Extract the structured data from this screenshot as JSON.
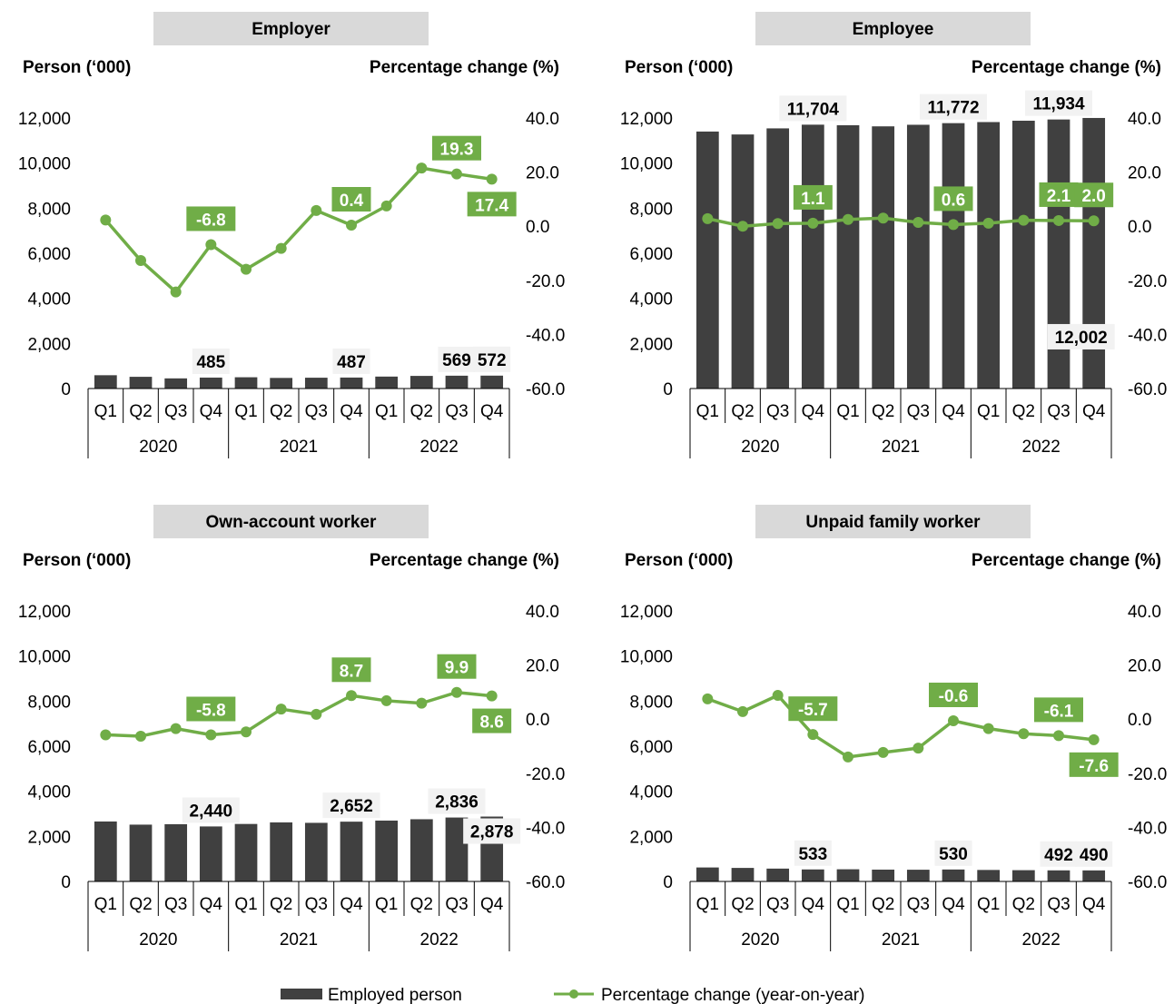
{
  "legend": {
    "bar_label": "Employed person",
    "line_label": "Percentage change (year-on-year)"
  },
  "colors": {
    "bar": "#404040",
    "line": "#70ad47",
    "title_bg": "#d9d9d9",
    "bar_label_bg": "#f2f2f2"
  },
  "chart_data": [
    {
      "type": "bar",
      "title": "Employer",
      "ylabel": "Person (‘000)",
      "y2label": "Percentage change (%)",
      "ylim": [
        0,
        12000
      ],
      "yticks": [
        "0",
        "2,000",
        "4,000",
        "6,000",
        "8,000",
        "10,000",
        "12,000"
      ],
      "y2lim": [
        -60,
        40
      ],
      "y2ticks": [
        "-60.0",
        "-40.0",
        "-20.0",
        "0.0",
        "20.0",
        "40.0"
      ],
      "years": [
        "2020",
        "2021",
        "2022"
      ],
      "quarters": [
        "Q1",
        "Q2",
        "Q3",
        "Q4",
        "Q1",
        "Q2",
        "Q3",
        "Q4",
        "Q1",
        "Q2",
        "Q3",
        "Q4"
      ],
      "series": [
        {
          "name": "Employed person",
          "type": "bar",
          "values": [
            590,
            520,
            450,
            485,
            500,
            470,
            480,
            487,
            530,
            560,
            569,
            572
          ]
        },
        {
          "name": "Percentage change (year-on-year)",
          "type": "line",
          "values": [
            2.3,
            -12.7,
            -24.3,
            -6.8,
            -15.9,
            -8.2,
            5.8,
            0.4,
            7.5,
            21.5,
            19.3,
            17.4
          ]
        }
      ],
      "bar_labels": [
        {
          "index": 3,
          "text": "485"
        },
        {
          "index": 7,
          "text": "487"
        },
        {
          "index": 10,
          "text": "569"
        },
        {
          "index": 11,
          "text": "572"
        }
      ],
      "line_labels": [
        {
          "index": 3,
          "text": "-6.8",
          "pos": "above"
        },
        {
          "index": 7,
          "text": "0.4",
          "pos": "above"
        },
        {
          "index": 10,
          "text": "19.3",
          "pos": "above"
        },
        {
          "index": 11,
          "text": "17.4",
          "pos": "below"
        }
      ]
    },
    {
      "type": "bar",
      "title": "Employee",
      "ylabel": "Person (‘000)",
      "y2label": "Percentage change (%)",
      "ylim": [
        0,
        12000
      ],
      "yticks": [
        "0",
        "2,000",
        "4,000",
        "6,000",
        "8,000",
        "10,000",
        "12,000"
      ],
      "y2lim": [
        -60,
        40
      ],
      "y2ticks": [
        "-60.0",
        "-40.0",
        "-20.0",
        "0.0",
        "20.0",
        "40.0"
      ],
      "years": [
        "2020",
        "2021",
        "2022"
      ],
      "quarters": [
        "Q1",
        "Q2",
        "Q3",
        "Q4",
        "Q1",
        "Q2",
        "Q3",
        "Q4",
        "Q1",
        "Q2",
        "Q3",
        "Q4"
      ],
      "series": [
        {
          "name": "Employed person",
          "type": "bar",
          "values": [
            11400,
            11270,
            11540,
            11704,
            11680,
            11630,
            11700,
            11772,
            11820,
            11880,
            11934,
            12002
          ]
        },
        {
          "name": "Percentage change (year-on-year)",
          "type": "line",
          "values": [
            2.8,
            0.0,
            1.0,
            1.1,
            2.5,
            3.0,
            1.4,
            0.6,
            1.1,
            2.2,
            2.1,
            2.0
          ]
        }
      ],
      "bar_labels": [
        {
          "index": 3,
          "text": "11,704"
        },
        {
          "index": 7,
          "text": "11,772"
        },
        {
          "index": 10,
          "text": "11,934"
        },
        {
          "index": 11,
          "text": "12,002"
        }
      ],
      "line_labels": [
        {
          "index": 3,
          "text": "1.1",
          "pos": "above"
        },
        {
          "index": 7,
          "text": "0.6",
          "pos": "above"
        },
        {
          "index": 10,
          "text": "2.1",
          "pos": "above"
        },
        {
          "index": 11,
          "text": "2.0",
          "pos": "above"
        }
      ]
    },
    {
      "type": "bar",
      "title": "Own-account worker",
      "ylabel": "Person (‘000)",
      "y2label": "Percentage change (%)",
      "ylim": [
        0,
        12000
      ],
      "yticks": [
        "0",
        "2,000",
        "4,000",
        "6,000",
        "8,000",
        "10,000",
        "12,000"
      ],
      "y2lim": [
        -60,
        40
      ],
      "y2ticks": [
        "-60.0",
        "-40.0",
        "-20.0",
        "0.0",
        "20.0",
        "40.0"
      ],
      "years": [
        "2020",
        "2021",
        "2022"
      ],
      "quarters": [
        "Q1",
        "Q2",
        "Q3",
        "Q4",
        "Q1",
        "Q2",
        "Q3",
        "Q4",
        "Q1",
        "Q2",
        "Q3",
        "Q4"
      ],
      "series": [
        {
          "name": "Employed person",
          "type": "bar",
          "values": [
            2660,
            2520,
            2540,
            2440,
            2550,
            2620,
            2600,
            2652,
            2700,
            2760,
            2836,
            2878
          ]
        },
        {
          "name": "Percentage change (year-on-year)",
          "type": "line",
          "values": [
            -5.8,
            -6.3,
            -3.5,
            -5.8,
            -4.7,
            3.7,
            1.8,
            8.7,
            6.8,
            5.9,
            9.9,
            8.6
          ]
        }
      ],
      "bar_labels": [
        {
          "index": 3,
          "text": "2,440"
        },
        {
          "index": 7,
          "text": "2,652"
        },
        {
          "index": 10,
          "text": "2,836"
        },
        {
          "index": 11,
          "text": "2,878"
        }
      ],
      "line_labels": [
        {
          "index": 3,
          "text": "-5.8",
          "pos": "above"
        },
        {
          "index": 7,
          "text": "8.7",
          "pos": "above"
        },
        {
          "index": 10,
          "text": "9.9",
          "pos": "above"
        },
        {
          "index": 11,
          "text": "8.6",
          "pos": "below"
        }
      ]
    },
    {
      "type": "bar",
      "title": "Unpaid family worker",
      "ylabel": "Person (‘000)",
      "y2label": "Percentage change (%)",
      "ylim": [
        0,
        12000
      ],
      "yticks": [
        "0",
        "2,000",
        "4,000",
        "6,000",
        "8,000",
        "10,000",
        "12,000"
      ],
      "y2lim": [
        -60,
        40
      ],
      "y2ticks": [
        "-60.0",
        "-40.0",
        "-20.0",
        "0.0",
        "20.0",
        "40.0"
      ],
      "years": [
        "2020",
        "2021",
        "2022"
      ],
      "quarters": [
        "Q1",
        "Q2",
        "Q3",
        "Q4",
        "Q1",
        "Q2",
        "Q3",
        "Q4",
        "Q1",
        "Q2",
        "Q3",
        "Q4"
      ],
      "series": [
        {
          "name": "Employed person",
          "type": "bar",
          "values": [
            620,
            600,
            570,
            533,
            540,
            525,
            520,
            530,
            510,
            500,
            492,
            490
          ]
        },
        {
          "name": "Percentage change (year-on-year)",
          "type": "line",
          "values": [
            7.5,
            2.8,
            8.8,
            -5.7,
            -14.0,
            -12.3,
            -10.7,
            -0.6,
            -3.5,
            -5.4,
            -6.1,
            -7.6
          ]
        }
      ],
      "bar_labels": [
        {
          "index": 3,
          "text": "533"
        },
        {
          "index": 7,
          "text": "530"
        },
        {
          "index": 10,
          "text": "492"
        },
        {
          "index": 11,
          "text": "490"
        }
      ],
      "line_labels": [
        {
          "index": 3,
          "text": "-5.7",
          "pos": "above"
        },
        {
          "index": 7,
          "text": "-0.6",
          "pos": "above"
        },
        {
          "index": 10,
          "text": "-6.1",
          "pos": "above"
        },
        {
          "index": 11,
          "text": "-7.6",
          "pos": "below"
        }
      ]
    }
  ]
}
